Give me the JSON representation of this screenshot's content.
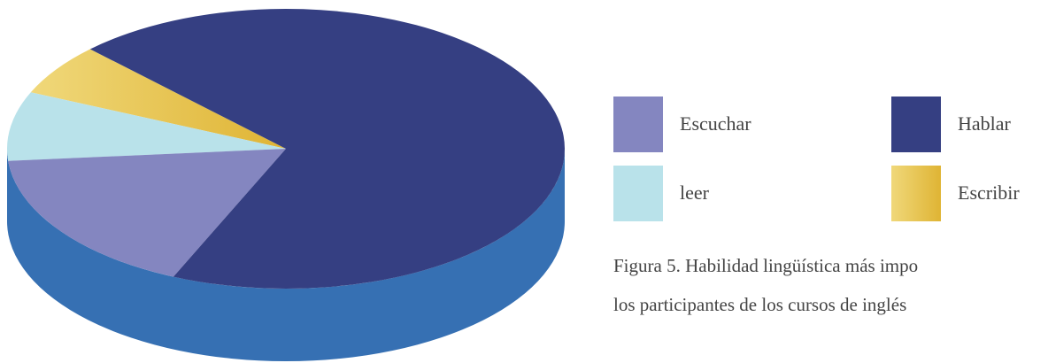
{
  "chart_data": {
    "type": "pie3d",
    "categories": [
      "Escribir",
      "leer",
      "Escuchar",
      "Hablar"
    ],
    "values": [
      6,
      8,
      17,
      69
    ],
    "colors": [
      "#e6c24f",
      "#b9e2ea",
      "#8486c0",
      "#353f82"
    ],
    "side_color": "#3670b3",
    "caption": [
      "Figura 5. Habilidad lingüística más impo",
      "los participantes de los cursos de inglés"
    ]
  }
}
